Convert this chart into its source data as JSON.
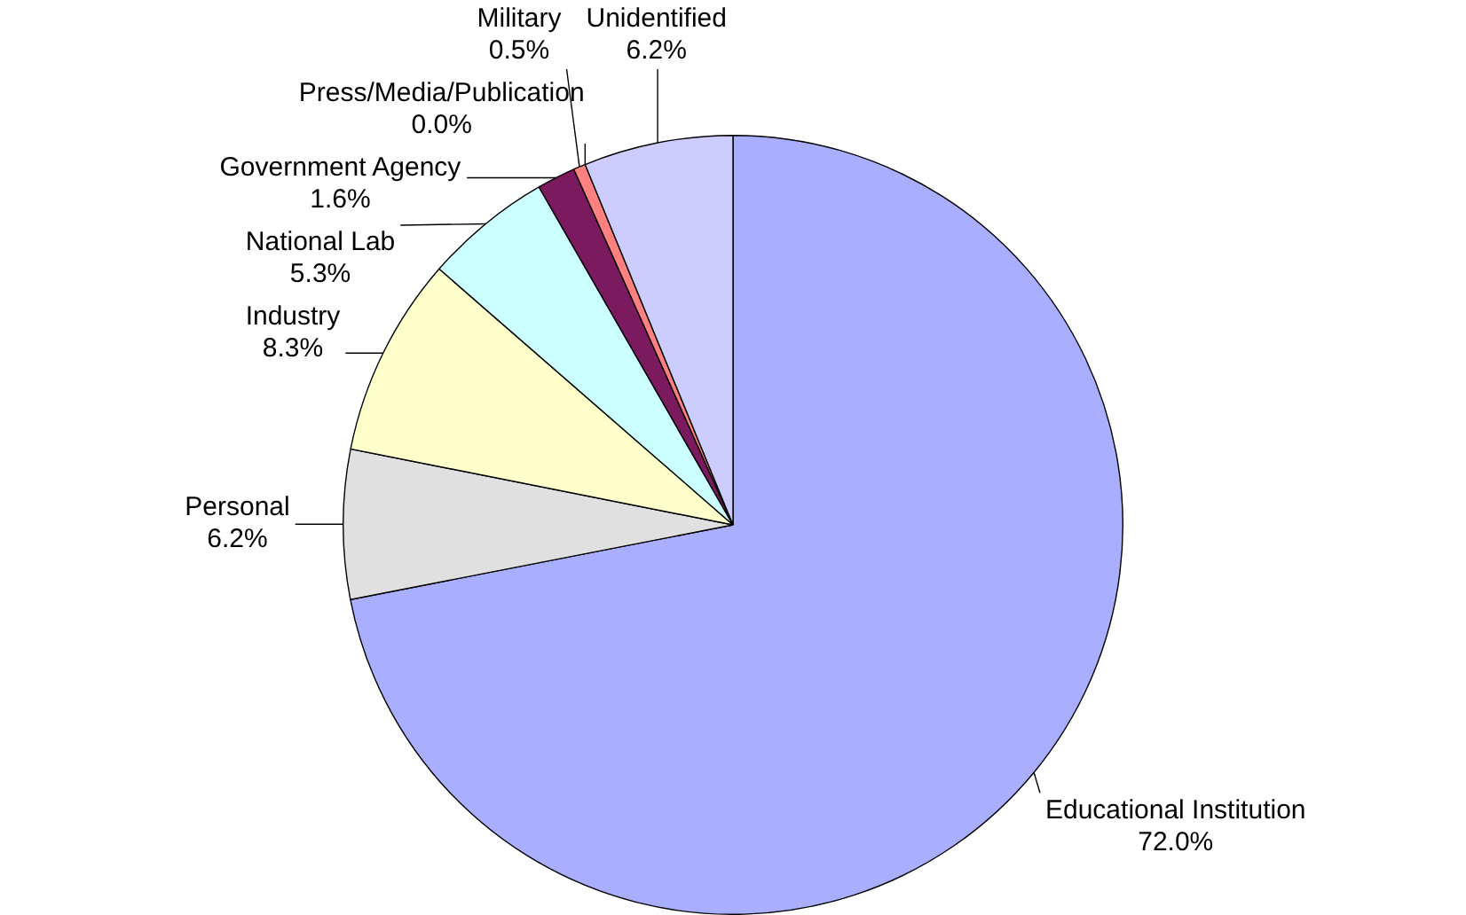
{
  "chart_data": {
    "type": "pie",
    "categories": [
      "Educational Institution",
      "Personal",
      "Industry",
      "National Lab",
      "Government Agency",
      "Military",
      "Press/Media/Publication",
      "Unidentified"
    ],
    "values": [
      72.0,
      6.2,
      8.3,
      5.3,
      1.6,
      0.5,
      0.0,
      6.2
    ],
    "value_labels": [
      "72.0%",
      "6.2%",
      "8.3%",
      "5.3%",
      "1.6%",
      "0.5%",
      "0.0%",
      "6.2%"
    ],
    "colors": [
      "#a9aefe",
      "#e0e0e0",
      "#ffffcc",
      "#ccffff",
      "#7b1a5e",
      "#ff8080",
      "#ffcc99",
      "#ccccff"
    ],
    "legend": false
  }
}
